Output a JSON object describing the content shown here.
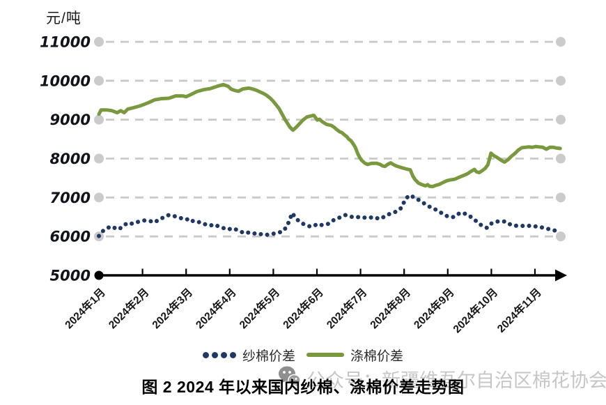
{
  "watermark": {
    "text": "公众号：新疆维吾尔自治区棉花协会",
    "color": "#c6c6c6",
    "icon": "wechat-icon"
  },
  "caption": {
    "text": "图 2  2024 年以来国内纱棉、涤棉价差走势图"
  },
  "chart_data": {
    "type": "line",
    "title": "图 2  2024 年以来国内纱棉、涤棉价差走势图",
    "unit_label": "元/吨",
    "legend_position": "bottom",
    "grid": "dashed-horizontal",
    "y_axis": {
      "min": 5000,
      "max": 11000,
      "step": 1000,
      "tick_labels": [
        "5000",
        "6000",
        "7000",
        "8000",
        "9000",
        "10000",
        "11000"
      ],
      "gridline_color": "#c9c9c9"
    },
    "x_axis": {
      "unit": "month",
      "tick_labels": [
        "2024年1月",
        "2024年2月",
        "2024年3月",
        "2024年4月",
        "2024年5月",
        "2024年6月",
        "2024年7月",
        "2024年8月",
        "2024年9月",
        "2024年10月",
        "2024年11月"
      ],
      "x_range": [
        1,
        11.58
      ]
    },
    "series": [
      {
        "name": "纱棉价差",
        "color": "#1F3864",
        "line_style": "dotted",
        "points": [
          [
            1.0,
            6010
          ],
          [
            1.08,
            6130
          ],
          [
            1.16,
            6190
          ],
          [
            1.24,
            6240
          ],
          [
            1.32,
            6200
          ],
          [
            1.4,
            6240
          ],
          [
            1.48,
            6200
          ],
          [
            1.56,
            6280
          ],
          [
            1.64,
            6330
          ],
          [
            1.72,
            6310
          ],
          [
            1.8,
            6360
          ],
          [
            1.88,
            6370
          ],
          [
            1.96,
            6390
          ],
          [
            2.04,
            6410
          ],
          [
            2.12,
            6390
          ],
          [
            2.2,
            6390
          ],
          [
            2.28,
            6360
          ],
          [
            2.38,
            6440
          ],
          [
            2.49,
            6490
          ],
          [
            2.6,
            6550
          ],
          [
            2.68,
            6540
          ],
          [
            2.76,
            6510
          ],
          [
            2.84,
            6490
          ],
          [
            2.92,
            6450
          ],
          [
            3.0,
            6430
          ],
          [
            3.08,
            6460
          ],
          [
            3.16,
            6390
          ],
          [
            3.24,
            6360
          ],
          [
            3.32,
            6370
          ],
          [
            3.4,
            6330
          ],
          [
            3.48,
            6290
          ],
          [
            3.56,
            6280
          ],
          [
            3.64,
            6310
          ],
          [
            3.72,
            6270
          ],
          [
            3.8,
            6250
          ],
          [
            3.88,
            6200
          ],
          [
            3.96,
            6210
          ],
          [
            4.04,
            6170
          ],
          [
            4.12,
            6190
          ],
          [
            4.2,
            6150
          ],
          [
            4.28,
            6110
          ],
          [
            4.36,
            6130
          ],
          [
            4.44,
            6090
          ],
          [
            4.52,
            6070
          ],
          [
            4.6,
            6080
          ],
          [
            4.68,
            6050
          ],
          [
            4.76,
            6070
          ],
          [
            4.84,
            6040
          ],
          [
            4.92,
            6050
          ],
          [
            5.0,
            6070
          ],
          [
            5.08,
            6090
          ],
          [
            5.16,
            6110
          ],
          [
            5.24,
            6150
          ],
          [
            5.32,
            6280
          ],
          [
            5.38,
            6440
          ],
          [
            5.43,
            6600
          ],
          [
            5.5,
            6500
          ],
          [
            5.56,
            6420
          ],
          [
            5.61,
            6380
          ],
          [
            5.69,
            6320
          ],
          [
            5.77,
            6290
          ],
          [
            5.85,
            6250
          ],
          [
            5.93,
            6270
          ],
          [
            6.01,
            6320
          ],
          [
            6.09,
            6290
          ],
          [
            6.17,
            6310
          ],
          [
            6.25,
            6320
          ],
          [
            6.33,
            6380
          ],
          [
            6.41,
            6440
          ],
          [
            6.49,
            6470
          ],
          [
            6.57,
            6510
          ],
          [
            6.65,
            6550
          ],
          [
            6.73,
            6530
          ],
          [
            6.81,
            6500
          ],
          [
            6.89,
            6510
          ],
          [
            6.97,
            6490
          ],
          [
            7.05,
            6500
          ],
          [
            7.13,
            6470
          ],
          [
            7.21,
            6480
          ],
          [
            7.29,
            6500
          ],
          [
            7.37,
            6470
          ],
          [
            7.45,
            6450
          ],
          [
            7.53,
            6500
          ],
          [
            7.61,
            6550
          ],
          [
            7.69,
            6590
          ],
          [
            7.77,
            6620
          ],
          [
            7.85,
            6650
          ],
          [
            7.93,
            6730
          ],
          [
            8.01,
            6910
          ],
          [
            8.09,
            7030
          ],
          [
            8.15,
            7060
          ],
          [
            8.21,
            7010
          ],
          [
            8.27,
            6970
          ],
          [
            8.33,
            6940
          ],
          [
            8.41,
            6890
          ],
          [
            8.49,
            6820
          ],
          [
            8.57,
            6770
          ],
          [
            8.65,
            6730
          ],
          [
            8.76,
            6670
          ],
          [
            8.86,
            6600
          ],
          [
            8.94,
            6540
          ],
          [
            9.02,
            6510
          ],
          [
            9.1,
            6490
          ],
          [
            9.18,
            6520
          ],
          [
            9.26,
            6590
          ],
          [
            9.34,
            6610
          ],
          [
            9.42,
            6570
          ],
          [
            9.5,
            6530
          ],
          [
            9.58,
            6450
          ],
          [
            9.66,
            6390
          ],
          [
            9.74,
            6310
          ],
          [
            9.82,
            6260
          ],
          [
            9.9,
            6220
          ],
          [
            10.01,
            6340
          ],
          [
            10.12,
            6380
          ],
          [
            10.22,
            6390
          ],
          [
            10.33,
            6380
          ],
          [
            10.41,
            6320
          ],
          [
            10.52,
            6270
          ],
          [
            10.62,
            6280
          ],
          [
            10.73,
            6270
          ],
          [
            10.84,
            6280
          ],
          [
            10.94,
            6250
          ],
          [
            11.05,
            6260
          ],
          [
            11.16,
            6230
          ],
          [
            11.26,
            6200
          ],
          [
            11.37,
            6180
          ],
          [
            11.46,
            6150
          ],
          [
            11.58,
            6130
          ]
        ]
      },
      {
        "name": "涤棉价差",
        "color": "#79993E",
        "line_style": "solid",
        "points": [
          [
            1.0,
            9140
          ],
          [
            1.05,
            9250
          ],
          [
            1.18,
            9250
          ],
          [
            1.3,
            9230
          ],
          [
            1.42,
            9180
          ],
          [
            1.5,
            9230
          ],
          [
            1.58,
            9180
          ],
          [
            1.66,
            9270
          ],
          [
            1.8,
            9310
          ],
          [
            1.96,
            9360
          ],
          [
            2.12,
            9430
          ],
          [
            2.28,
            9510
          ],
          [
            2.44,
            9540
          ],
          [
            2.6,
            9550
          ],
          [
            2.76,
            9610
          ],
          [
            2.92,
            9610
          ],
          [
            3.0,
            9590
          ],
          [
            3.08,
            9630
          ],
          [
            3.24,
            9720
          ],
          [
            3.4,
            9770
          ],
          [
            3.56,
            9800
          ],
          [
            3.72,
            9860
          ],
          [
            3.85,
            9900
          ],
          [
            3.96,
            9860
          ],
          [
            4.04,
            9780
          ],
          [
            4.12,
            9750
          ],
          [
            4.2,
            9730
          ],
          [
            4.3,
            9790
          ],
          [
            4.44,
            9810
          ],
          [
            4.52,
            9790
          ],
          [
            4.6,
            9760
          ],
          [
            4.68,
            9720
          ],
          [
            4.76,
            9680
          ],
          [
            4.84,
            9630
          ],
          [
            4.92,
            9560
          ],
          [
            5.0,
            9470
          ],
          [
            5.13,
            9290
          ],
          [
            5.26,
            9020
          ],
          [
            5.38,
            8810
          ],
          [
            5.45,
            8730
          ],
          [
            5.52,
            8800
          ],
          [
            5.58,
            8870
          ],
          [
            5.68,
            8990
          ],
          [
            5.77,
            9070
          ],
          [
            5.88,
            9100
          ],
          [
            5.93,
            9110
          ],
          [
            6.01,
            8990
          ],
          [
            6.06,
            9010
          ],
          [
            6.12,
            8950
          ],
          [
            6.22,
            8880
          ],
          [
            6.33,
            8850
          ],
          [
            6.4,
            8800
          ],
          [
            6.44,
            8760
          ],
          [
            6.52,
            8690
          ],
          [
            6.57,
            8670
          ],
          [
            6.64,
            8600
          ],
          [
            6.68,
            8570
          ],
          [
            6.73,
            8500
          ],
          [
            6.78,
            8460
          ],
          [
            6.83,
            8380
          ],
          [
            6.88,
            8290
          ],
          [
            6.94,
            8120
          ],
          [
            6.98,
            8030
          ],
          [
            7.02,
            7960
          ],
          [
            7.1,
            7880
          ],
          [
            7.16,
            7850
          ],
          [
            7.26,
            7880
          ],
          [
            7.37,
            7880
          ],
          [
            7.45,
            7850
          ],
          [
            7.51,
            7810
          ],
          [
            7.56,
            7800
          ],
          [
            7.62,
            7850
          ],
          [
            7.69,
            7890
          ],
          [
            7.75,
            7850
          ],
          [
            7.82,
            7810
          ],
          [
            7.93,
            7770
          ],
          [
            8.06,
            7730
          ],
          [
            8.14,
            7710
          ],
          [
            8.2,
            7550
          ],
          [
            8.25,
            7460
          ],
          [
            8.33,
            7370
          ],
          [
            8.41,
            7330
          ],
          [
            8.49,
            7300
          ],
          [
            8.54,
            7330
          ],
          [
            8.58,
            7290
          ],
          [
            8.65,
            7280
          ],
          [
            8.72,
            7310
          ],
          [
            8.81,
            7340
          ],
          [
            8.9,
            7390
          ],
          [
            8.98,
            7430
          ],
          [
            9.05,
            7450
          ],
          [
            9.16,
            7470
          ],
          [
            9.26,
            7520
          ],
          [
            9.37,
            7570
          ],
          [
            9.45,
            7610
          ],
          [
            9.53,
            7670
          ],
          [
            9.61,
            7720
          ],
          [
            9.66,
            7660
          ],
          [
            9.72,
            7640
          ],
          [
            9.79,
            7690
          ],
          [
            9.86,
            7750
          ],
          [
            9.92,
            7840
          ],
          [
            9.96,
            8000
          ],
          [
            9.99,
            8140
          ],
          [
            10.05,
            8080
          ],
          [
            10.13,
            8030
          ],
          [
            10.22,
            7960
          ],
          [
            10.3,
            7910
          ],
          [
            10.38,
            7970
          ],
          [
            10.46,
            8060
          ],
          [
            10.54,
            8130
          ],
          [
            10.62,
            8220
          ],
          [
            10.7,
            8280
          ],
          [
            10.78,
            8290
          ],
          [
            10.86,
            8300
          ],
          [
            10.94,
            8290
          ],
          [
            11.02,
            8310
          ],
          [
            11.1,
            8300
          ],
          [
            11.18,
            8290
          ],
          [
            11.26,
            8240
          ],
          [
            11.34,
            8290
          ],
          [
            11.42,
            8290
          ],
          [
            11.5,
            8270
          ],
          [
            11.58,
            8260
          ]
        ]
      }
    ]
  }
}
